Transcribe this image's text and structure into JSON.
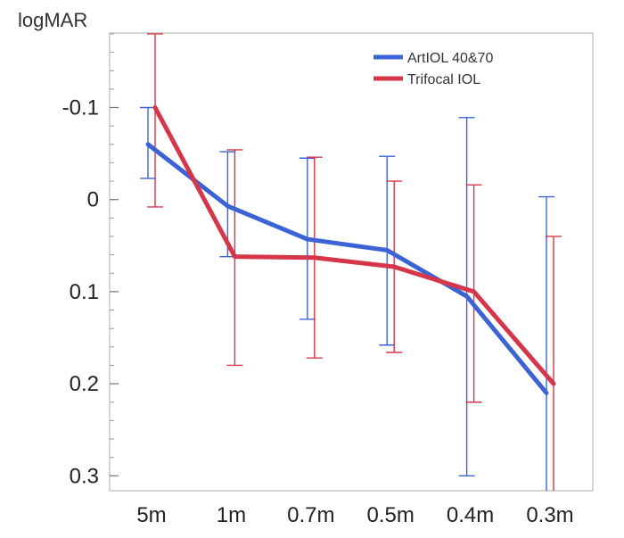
{
  "chart_data": {
    "type": "line",
    "title": "",
    "xlabel": "",
    "ylabel": "logMAR",
    "categories": [
      "5m",
      "1m",
      "0.7m",
      "0.5m",
      "0.4m",
      "0.3m"
    ],
    "y_axis_inverted": true,
    "ylim": [
      -0.2,
      0.32
    ],
    "yticks": [
      -0.1,
      0,
      0.1,
      0.2,
      0.3
    ],
    "ytick_labels": [
      "-0.1",
      "0",
      "0.1",
      "0.2",
      "0.3"
    ],
    "grid": false,
    "legend_position": "top-right",
    "series": [
      {
        "name": "ArtIOL 40&70",
        "color": "#3b63d6",
        "values": [
          -0.06,
          0.007,
          0.043,
          0.055,
          0.105,
          0.21
        ],
        "error_low": [
          -0.1,
          -0.052,
          -0.045,
          -0.047,
          -0.089,
          -0.003
        ],
        "error_high": [
          -0.023,
          0.062,
          0.13,
          0.158,
          0.3,
          0.32
        ]
      },
      {
        "name": "Trifocal IOL",
        "color": "#d6364a",
        "values": [
          -0.1,
          0.062,
          0.063,
          0.073,
          0.1,
          0.2
        ],
        "error_low": [
          -0.18,
          -0.054,
          -0.046,
          -0.02,
          -0.016,
          0.04
        ],
        "error_high": [
          0.008,
          0.18,
          0.172,
          0.166,
          0.22,
          0.32
        ]
      }
    ]
  }
}
